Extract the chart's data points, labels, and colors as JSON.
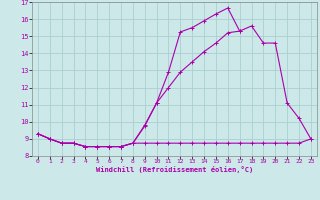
{
  "xlabel": "Windchill (Refroidissement éolien,°C)",
  "xlim": [
    -0.5,
    23.5
  ],
  "ylim": [
    8,
    17
  ],
  "yticks": [
    8,
    9,
    10,
    11,
    12,
    13,
    14,
    15,
    16,
    17
  ],
  "xticks": [
    0,
    1,
    2,
    3,
    4,
    5,
    6,
    7,
    8,
    9,
    10,
    11,
    12,
    13,
    14,
    15,
    16,
    17,
    18,
    19,
    20,
    21,
    22,
    23
  ],
  "background_color": "#cce8e8",
  "grid_color": "#aacfcf",
  "line_color": "#aa00aa",
  "line1_x": [
    0,
    1,
    2,
    3,
    4,
    5,
    6,
    7,
    8,
    9,
    10,
    11,
    12,
    13,
    14,
    15,
    16,
    17,
    18,
    19
  ],
  "line1_y": [
    9.3,
    9.0,
    8.75,
    8.75,
    8.55,
    8.55,
    8.55,
    8.55,
    8.75,
    9.8,
    11.1,
    12.9,
    15.25,
    15.5,
    15.9,
    16.3,
    16.65,
    15.3,
    null,
    null
  ],
  "line2_x": [
    0,
    1,
    2,
    3,
    4,
    5,
    6,
    7,
    8,
    9,
    10,
    11,
    12,
    13,
    14,
    15,
    16,
    17,
    18,
    19,
    20,
    21,
    22,
    23
  ],
  "line2_y": [
    9.3,
    9.0,
    8.75,
    8.75,
    8.55,
    8.55,
    8.55,
    8.55,
    8.75,
    9.75,
    11.1,
    12.0,
    12.9,
    13.5,
    14.1,
    14.6,
    15.2,
    15.3,
    15.6,
    14.6,
    14.6,
    11.1,
    10.2,
    9.0
  ],
  "line3_x": [
    0,
    1,
    2,
    3,
    4,
    5,
    6,
    7,
    8,
    9,
    10,
    11,
    12,
    13,
    14,
    15,
    16,
    17,
    18,
    19,
    20,
    21,
    22,
    23
  ],
  "line3_y": [
    9.3,
    9.0,
    8.75,
    8.75,
    8.55,
    8.55,
    8.55,
    8.55,
    8.75,
    8.75,
    8.75,
    8.75,
    8.75,
    8.75,
    8.75,
    8.75,
    8.75,
    8.75,
    8.75,
    8.75,
    8.75,
    8.75,
    8.75,
    9.0
  ]
}
